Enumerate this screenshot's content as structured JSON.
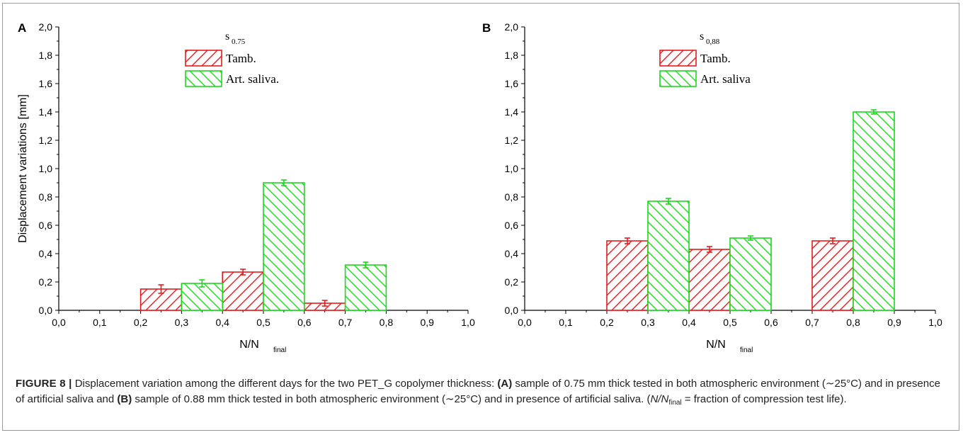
{
  "chart_data": [
    {
      "panel": "A",
      "type": "bar",
      "xlabel": "N/N",
      "xlabel_sub": "final",
      "ylabel": "Displacement variations [mm]",
      "xlim": [
        0,
        1.0
      ],
      "ylim": [
        0,
        2.0
      ],
      "x_ticks": [
        "0,0",
        "0,1",
        "0,2",
        "0,3",
        "0,4",
        "0,5",
        "0,6",
        "0,7",
        "0,8",
        "0,9",
        "1,0"
      ],
      "y_ticks": [
        "0,0",
        "0,2",
        "0,4",
        "0,6",
        "0,8",
        "1,0",
        "1,2",
        "1,4",
        "1,6",
        "1,8",
        "2,0"
      ],
      "legend_title": "s",
      "legend_title_sub": "0.75",
      "bar_width": 0.1,
      "series": [
        {
          "name": "Tamb.",
          "color": "#e8191c",
          "x": [
            0.25,
            0.45,
            0.65
          ],
          "values": [
            0.15,
            0.27,
            0.05
          ],
          "errors": [
            0.03,
            0.02,
            0.02
          ]
        },
        {
          "name": "Art. saliva.",
          "color": "#1ad81a",
          "x": [
            0.35,
            0.55,
            0.75
          ],
          "values": [
            0.19,
            0.9,
            0.32
          ],
          "errors": [
            0.025,
            0.02,
            0.02
          ]
        }
      ]
    },
    {
      "panel": "B",
      "type": "bar",
      "xlabel": "N/N",
      "xlabel_sub": "final",
      "ylabel": "",
      "xlim": [
        0,
        1.0
      ],
      "ylim": [
        0,
        2.0
      ],
      "x_ticks": [
        "0,0",
        "0,1",
        "0,2",
        "0,3",
        "0,4",
        "0,5",
        "0,6",
        "0,7",
        "0,8",
        "0,9",
        "1,0"
      ],
      "y_ticks": [
        "0,0",
        "0,2",
        "0,4",
        "0,6",
        "0,8",
        "1,0",
        "1,2",
        "1,4",
        "1,6",
        "1,8",
        "2,0"
      ],
      "legend_title": "s",
      "legend_title_sub": "0,88",
      "bar_width": 0.1,
      "series": [
        {
          "name": "Tamb.",
          "color": "#e8191c",
          "x": [
            0.25,
            0.45,
            0.75
          ],
          "values": [
            0.49,
            0.43,
            0.49
          ],
          "errors": [
            0.02,
            0.02,
            0.02
          ]
        },
        {
          "name": "Art. saliva",
          "color": "#1ad81a",
          "x": [
            0.35,
            0.55,
            0.85
          ],
          "values": [
            0.77,
            0.51,
            1.4
          ],
          "errors": [
            0.02,
            0.015,
            0.015
          ]
        }
      ]
    }
  ],
  "caption": {
    "label": "FIGURE 8 |",
    "t1": " Displacement variation among the different days for the two PET_G copolymer thickness: ",
    "a_label": "(A)",
    "t2": " sample of 0.75 mm thick tested in both atmospheric environment (∼25°C) and in presence of artificial saliva and ",
    "b_label": "(B)",
    "t3": " sample of 0.88 mm thick tested in both atmospheric environment (∼25°C) and in presence of artificial saliva. (",
    "n_over": "N/N",
    "n_sub": "final",
    "t4": " = fraction of compression test life)."
  }
}
